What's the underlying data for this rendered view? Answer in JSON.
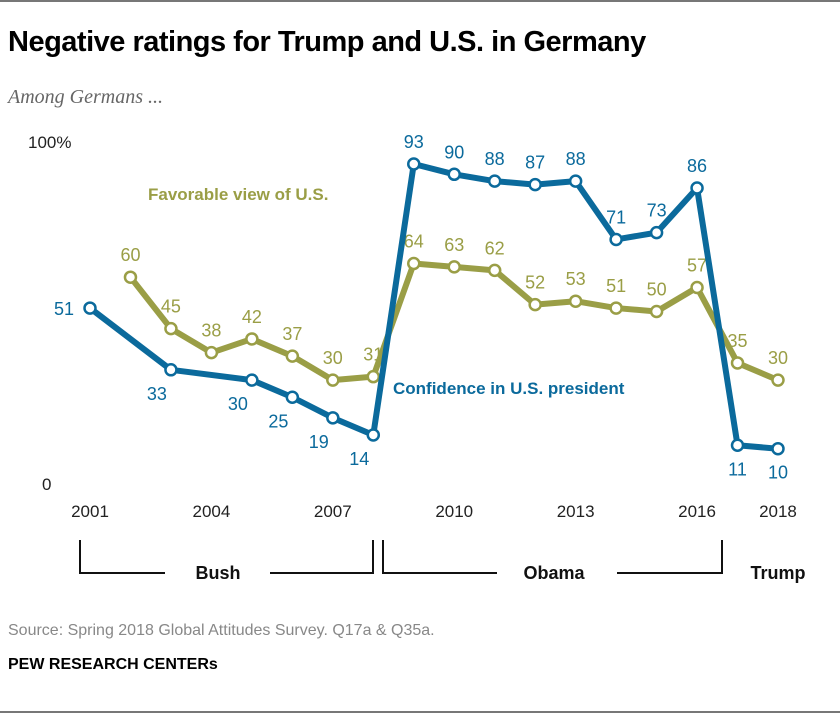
{
  "title": "Negative ratings for Trump and U.S. in Germany",
  "subtitle": "Among Germans ...",
  "source": "Source: Spring 2018 Global Attitudes Survey. Q17a & Q35a.",
  "brand": "PEW RESEARCH CENTERs",
  "colors": {
    "confidence": "#0b6a9c",
    "favorable": "#9a9e46"
  },
  "chart_data": {
    "type": "line",
    "title": "Negative ratings for Trump and U.S. in Germany",
    "ylim": [
      0,
      100
    ],
    "y_tick_labels": [
      "0",
      "100%"
    ],
    "x_tick_labels": [
      "2001",
      "2004",
      "2007",
      "2010",
      "2013",
      "2016",
      "2018"
    ],
    "grid": false,
    "series": [
      {
        "name": "Favorable view of U.S.",
        "x": [
          2002,
          2003,
          2004,
          2005,
          2006,
          2007,
          2008,
          2009,
          2010,
          2011,
          2012,
          2013,
          2014,
          2015,
          2016,
          2017,
          2018
        ],
        "values": [
          60,
          45,
          38,
          42,
          37,
          30,
          31,
          64,
          63,
          62,
          52,
          53,
          51,
          50,
          57,
          35,
          30
        ]
      },
      {
        "name": "Confidence in U.S. president",
        "x": [
          2001,
          2003,
          2005,
          2006,
          2007,
          2008,
          2009,
          2010,
          2011,
          2012,
          2013,
          2014,
          2015,
          2016,
          2017,
          2018
        ],
        "values": [
          51,
          33,
          30,
          25,
          19,
          14,
          93,
          90,
          88,
          87,
          88,
          71,
          73,
          86,
          11,
          10
        ]
      }
    ],
    "annotations": [
      "Bush",
      "Obama",
      "Trump"
    ]
  }
}
